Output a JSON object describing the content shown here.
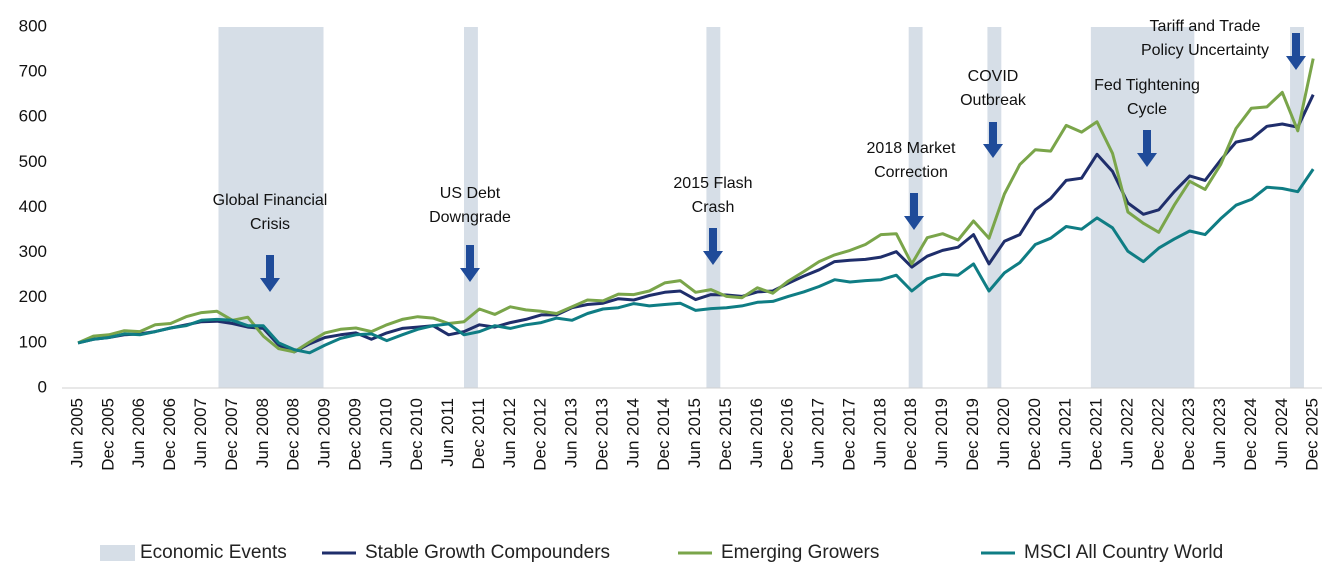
{
  "chart_data": {
    "type": "line",
    "categories": [
      "Jun 2005",
      null,
      "Dec 2005",
      null,
      "Jun 2006",
      null,
      "Dec 2006",
      null,
      "Jun 2007",
      null,
      "Dec 2007",
      null,
      "Jun 2008",
      null,
      "Dec 2008",
      null,
      "Jun 2009",
      null,
      "Dec 2009",
      null,
      "Jun 2010",
      null,
      "Dec 2010",
      null,
      "Jun 2011",
      null,
      "Dec 2011",
      null,
      "Jun 2012",
      null,
      "Dec 2012",
      null,
      "Jun 2013",
      null,
      "Dec 2013",
      null,
      "Jun 2014",
      null,
      "Dec 2014",
      null,
      "Jun 2015",
      null,
      "Dec 2015",
      null,
      "Jun 2016",
      null,
      "Dec 2016",
      null,
      "Jun 2017",
      null,
      "Dec 2017",
      null,
      "Jun 2018",
      null,
      "Dec 2018",
      null,
      "Jun 2019",
      null,
      "Dec 2019",
      null,
      "Jun 2020",
      null,
      "Dec 2020",
      null,
      "Jun 2021",
      null,
      "Dec 2021",
      null,
      "Jun 2022",
      null,
      "Dec 2022",
      null,
      "Dec 2023",
      null,
      "Jun 2023",
      null,
      "Dec 2024",
      null,
      "Jun 2024",
      null,
      "Dec 2025"
    ],
    "series": [
      {
        "name": "Stable Growth Compounders",
        "color": "#1f2e6b",
        "values": [
          100,
          108,
          112,
          118,
          120,
          125,
          133,
          140,
          147,
          148,
          143,
          135,
          132,
          95,
          80,
          98,
          112,
          118,
          122,
          108,
          122,
          132,
          135,
          138,
          118,
          125,
          140,
          135,
          145,
          152,
          162,
          162,
          178,
          185,
          188,
          198,
          195,
          205,
          212,
          215,
          196,
          207,
          206,
          203,
          213,
          215,
          232,
          248,
          262,
          280,
          283,
          285,
          290,
          302,
          268,
          292,
          305,
          312,
          340,
          275,
          325,
          340,
          395,
          420,
          460,
          465,
          518,
          480,
          410,
          385,
          395,
          435,
          470,
          460,
          505,
          545,
          552,
          580,
          585,
          578,
          650
        ]
      },
      {
        "name": "Emerging Growers",
        "color": "#7aa54a",
        "values": [
          100,
          115,
          118,
          127,
          125,
          140,
          143,
          158,
          167,
          170,
          150,
          157,
          115,
          87,
          80,
          102,
          122,
          130,
          133,
          125,
          140,
          152,
          158,
          155,
          143,
          147,
          175,
          163,
          180,
          173,
          170,
          165,
          180,
          195,
          193,
          208,
          207,
          215,
          233,
          238,
          212,
          218,
          203,
          200,
          222,
          210,
          237,
          258,
          280,
          295,
          305,
          318,
          340,
          342,
          275,
          333,
          342,
          328,
          370,
          332,
          430,
          495,
          528,
          525,
          582,
          567,
          590,
          520,
          390,
          365,
          345,
          405,
          458,
          440,
          495,
          575,
          620,
          623,
          655,
          570,
          730
        ]
      },
      {
        "name": "MSCI All Country World",
        "color": "#0f7d84",
        "values": [
          100,
          108,
          112,
          120,
          118,
          125,
          133,
          138,
          150,
          152,
          150,
          138,
          138,
          100,
          85,
          78,
          95,
          110,
          118,
          120,
          105,
          118,
          130,
          138,
          142,
          118,
          125,
          138,
          132,
          140,
          145,
          155,
          150,
          165,
          175,
          178,
          187,
          182,
          185,
          188,
          172,
          176,
          178,
          182,
          190,
          192,
          203,
          213,
          225,
          240,
          235,
          238,
          240,
          250,
          215,
          242,
          252,
          250,
          275,
          215,
          255,
          278,
          318,
          332,
          358,
          352,
          377,
          355,
          303,
          280,
          310,
          330,
          348,
          340,
          375,
          405,
          418,
          445,
          442,
          435,
          485
        ]
      }
    ],
    "events_legend": "Economic Events",
    "events_color": "#d6dee7",
    "events": [
      {
        "label": [
          "Global Financial",
          "Crisis"
        ],
        "start": 9.1,
        "end": 15.9
      },
      {
        "label": [
          "US Debt",
          "Downgrade"
        ],
        "start": 25.0,
        "end": 25.9
      },
      {
        "label": [
          "2015 Flash",
          "Crash"
        ],
        "start": 40.7,
        "end": 41.6
      },
      {
        "label": [
          "2018 Market",
          "Correction"
        ],
        "start": 53.8,
        "end": 54.7
      },
      {
        "label": [
          "COVID",
          "Outbreak"
        ],
        "start": 58.9,
        "end": 59.8
      },
      {
        "label": [
          "Fed Tightening",
          "Cycle"
        ],
        "start": 65.6,
        "end": 72.3
      },
      {
        "label": [
          "Tariff and Trade",
          "Policy Uncertainty"
        ],
        "start": 78.5,
        "end": 79.4
      }
    ],
    "ylim": [
      0,
      800
    ],
    "yticks": [
      0,
      100,
      200,
      300,
      400,
      500,
      600,
      700,
      800
    ],
    "grid": false
  }
}
